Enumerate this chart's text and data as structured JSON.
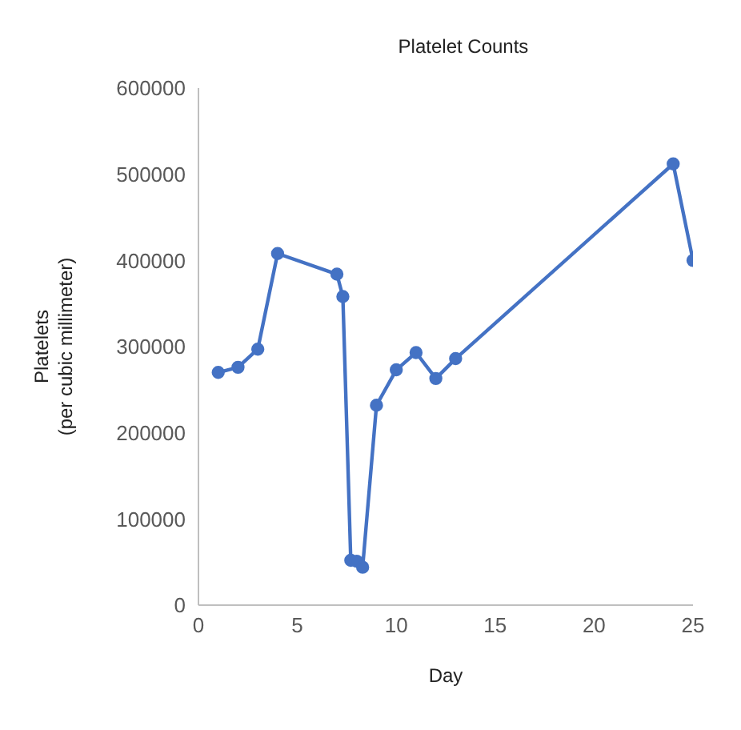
{
  "chart_data": {
    "type": "line",
    "title": "Platelet Counts",
    "xlabel": "Day",
    "ylabel": "Platelets\n(per cubic millimeter)",
    "series": [
      {
        "color": "#4472c4",
        "x": [
          1,
          2,
          3,
          4,
          7,
          7.3,
          7.7,
          8,
          8.3,
          9,
          10,
          11,
          12,
          13,
          24,
          25
        ],
        "values": [
          270000,
          276000,
          297000,
          408000,
          384000,
          358000,
          52000,
          51000,
          44000,
          232000,
          273000,
          293000,
          263000,
          286000,
          512000,
          400000
        ]
      }
    ],
    "xlim": [
      0,
      25
    ],
    "xticks": [
      0,
      5,
      10,
      15,
      20,
      25
    ],
    "ylim": [
      0,
      600000
    ],
    "yticks": [
      0,
      100000,
      200000,
      300000,
      400000,
      500000,
      600000
    ],
    "grid": false,
    "legend": false,
    "marker": "circle",
    "line_style": "solid"
  }
}
